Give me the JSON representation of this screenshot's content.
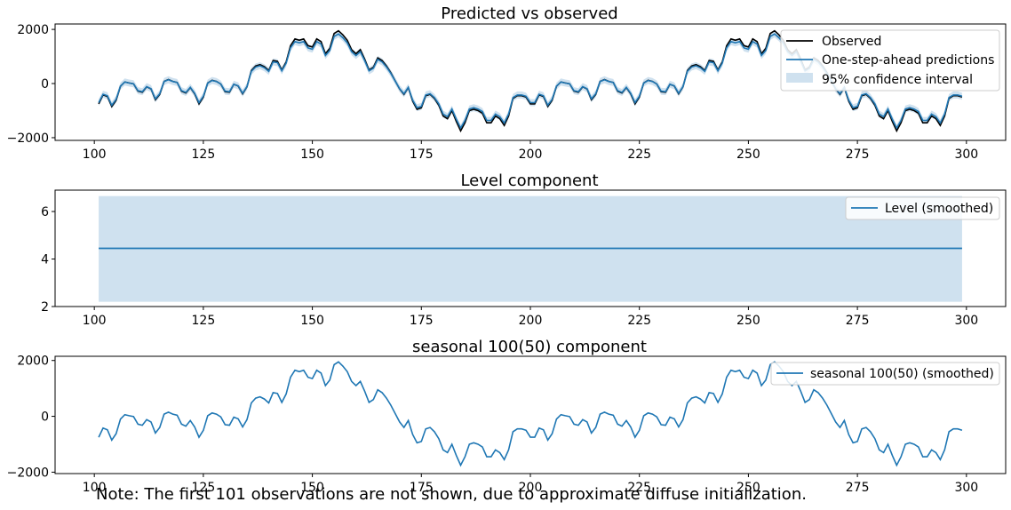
{
  "note": "Note: The first 101 observations are not shown, due to approximate diffuse initialization.",
  "colors": {
    "observed": "#000000",
    "prediction": "#1f77b4",
    "band": "#cfe1ef"
  },
  "chart_data": [
    {
      "type": "line",
      "title": "Predicted vs observed",
      "xlabel": "",
      "ylabel": "",
      "xlim": [
        91,
        309
      ],
      "ylim": [
        -2100,
        2200
      ],
      "xticks": [
        100,
        125,
        150,
        175,
        200,
        225,
        250,
        275,
        300
      ],
      "yticks": [
        -2000,
        0,
        2000
      ],
      "legend_position": "top-right",
      "legend": [
        "Observed",
        "One-step-ahead predictions",
        "95% confidence interval"
      ],
      "x_start": 101,
      "x_end": 299,
      "series": [
        {
          "name": "Observed",
          "kind": "observed"
        },
        {
          "name": "One-step-ahead predictions",
          "kind": "smoothed"
        },
        {
          "name": "95% confidence interval",
          "kind": "band",
          "halfwidth": 130
        }
      ]
    },
    {
      "type": "line",
      "title": "Level component",
      "xlabel": "",
      "ylabel": "",
      "xlim": [
        91,
        309
      ],
      "ylim": [
        2.0,
        6.9
      ],
      "xticks": [
        100,
        125,
        150,
        175,
        200,
        225,
        250,
        275,
        300
      ],
      "yticks": [
        2,
        4,
        6
      ],
      "legend_position": "top-right",
      "legend": [
        "Level (smoothed)"
      ],
      "x": [
        101,
        299
      ],
      "series": [
        {
          "name": "Level (smoothed)",
          "values": [
            4.45,
            4.45
          ],
          "ci_lower": [
            2.2,
            2.2
          ],
          "ci_upper": [
            6.65,
            6.65
          ]
        }
      ]
    },
    {
      "type": "line",
      "title": "seasonal 100(50) component",
      "xlabel": "",
      "ylabel": "",
      "xlim": [
        91,
        309
      ],
      "ylim": [
        -2050,
        2150
      ],
      "xticks": [
        100,
        125,
        150,
        175,
        200,
        225,
        250,
        275,
        300
      ],
      "yticks": [
        -2000,
        0,
        2000
      ],
      "legend_position": "top-right",
      "legend": [
        "seasonal 100(50) (smoothed)"
      ],
      "x_start": 101,
      "x_end": 299,
      "series": [
        {
          "name": "seasonal 100(50) (smoothed)",
          "kind": "smoothed"
        }
      ]
    }
  ],
  "signal_anchors": {
    "x": [
      101,
      102,
      103,
      104,
      105,
      106,
      107,
      108,
      109,
      110,
      111,
      112,
      113,
      114,
      115,
      116,
      117,
      118,
      119,
      120,
      121,
      122,
      123,
      124,
      125,
      126,
      127,
      128,
      129,
      130,
      131,
      132,
      133,
      134,
      135,
      136,
      137,
      138,
      139,
      140,
      141,
      142,
      143,
      144,
      145,
      146,
      147,
      148,
      149,
      150,
      151,
      152,
      153,
      154,
      155,
      156,
      157,
      158,
      159,
      160,
      161,
      162,
      163,
      164,
      165,
      166,
      167,
      168,
      169,
      170,
      171,
      172,
      173,
      174,
      175,
      176,
      177,
      178,
      179,
      180,
      181,
      182,
      183,
      184,
      185,
      186,
      187,
      188,
      189,
      190,
      191,
      192,
      193,
      194,
      195,
      196,
      197,
      198,
      199,
      200
    ],
    "y": [
      -750,
      -420,
      -480,
      -850,
      -620,
      -100,
      60,
      20,
      -10,
      -280,
      -320,
      -120,
      -200,
      -600,
      -400,
      80,
      150,
      80,
      40,
      -280,
      -350,
      -150,
      -380,
      -750,
      -500,
      20,
      120,
      80,
      -20,
      -300,
      -320,
      -30,
      -90,
      -380,
      -120,
      480,
      650,
      700,
      620,
      480,
      850,
      820,
      500,
      800,
      1400,
      1650,
      1600,
      1650,
      1400,
      1350,
      1650,
      1550,
      1100,
      1300,
      1850,
      1950,
      1800,
      1600,
      1250,
      1100,
      1250,
      900,
      500,
      600,
      950,
      850,
      650,
      400,
      100,
      -200,
      -400,
      -150,
      -650,
      -950,
      -900,
      -450,
      -400,
      -550,
      -800,
      -1200,
      -1300,
      -1000,
      -1400,
      -1750,
      -1450,
      -1000,
      -950,
      -1000,
      -1100,
      -1450,
      -1450,
      -1200,
      -1300,
      -1550,
      -1200,
      -550,
      -450,
      -450,
      -500,
      -750
    ]
  }
}
